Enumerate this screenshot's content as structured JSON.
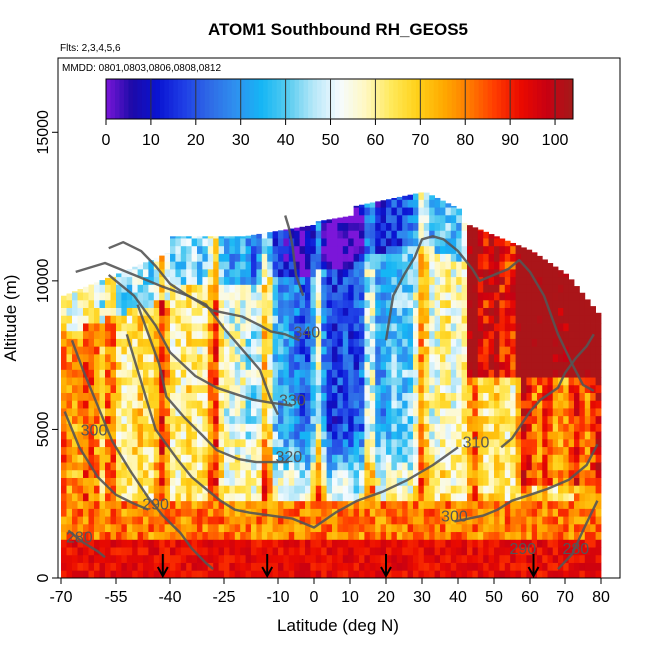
{
  "chart_data": {
    "type": "heatmap",
    "title": "ATOM1 Southbound RH_GEOS5",
    "flights_note": "Flts: 2,3,4,5,6",
    "dates_note": "MMDD: 0801,0803,0806,0808,0812",
    "xlabel": "Latitude (deg N)",
    "ylabel": "Altitude (m)",
    "xlim": [
      -70,
      80
    ],
    "ylim": [
      0,
      17500
    ],
    "x_ticks": [
      "-70",
      "-55",
      "-40",
      "-25",
      "-10",
      "0",
      "10",
      "20",
      "30",
      "40",
      "50",
      "60",
      "70",
      "80"
    ],
    "y_ticks": [
      "0",
      "5000",
      "10000",
      "15000"
    ],
    "colorbar": {
      "ticks": [
        "0",
        "10",
        "20",
        "30",
        "40",
        "50",
        "60",
        "70",
        "80",
        "90",
        "100"
      ],
      "range": [
        0,
        104
      ],
      "colors": [
        "#7b16d9",
        "#1c0aa8",
        "#0a14d2",
        "#1f3ee6",
        "#2f6be6",
        "#2f90ef",
        "#15b6f5",
        "#56cbf0",
        "#b6e7f8",
        "#f5fbff",
        "#fff8c2",
        "#ffe95a",
        "#ffd11a",
        "#ffaa00",
        "#ff7b00",
        "#ff3b00",
        "#ea0a00",
        "#c80012",
        "#a41a1a"
      ]
    },
    "flight_markers_lat": [
      -42,
      -13,
      20,
      61
    ],
    "contour_labels": [
      {
        "text": "340",
        "lat": -2,
        "alt": 8100
      },
      {
        "text": "330",
        "lat": -6,
        "alt": 5800
      },
      {
        "text": "320",
        "lat": -7,
        "alt": 3900
      },
      {
        "text": "310",
        "lat": 45,
        "alt": 4400
      },
      {
        "text": "300",
        "lat": -61,
        "alt": 4800
      },
      {
        "text": "300",
        "lat": 39,
        "alt": 1900
      },
      {
        "text": "290",
        "lat": -44,
        "alt": 2300
      },
      {
        "text": "290",
        "lat": 58,
        "alt": 800
      },
      {
        "text": "280",
        "lat": -65,
        "alt": 1200
      },
      {
        "text": "280",
        "lat": 73,
        "alt": 800
      }
    ],
    "contour_lines": [
      {
        "level": "340",
        "lat": [
          -66,
          -58,
          -50,
          -42,
          -35,
          -28,
          -20,
          -15,
          -12,
          -8,
          -4
        ],
        "alt": [
          10300,
          10600,
          10200,
          9800,
          9500,
          9000,
          8800,
          8500,
          8300,
          8200,
          8000
        ]
      },
      {
        "level": "330",
        "lat": [
          -57,
          -50,
          -44,
          -40,
          -33,
          -27,
          -22,
          -17,
          -12,
          -6
        ],
        "alt": [
          10200,
          9500,
          8500,
          7600,
          6800,
          6400,
          6200,
          6000,
          5900,
          5800
        ]
      },
      {
        "level": "320",
        "lat": [
          -49,
          -46,
          -43,
          -41,
          -36,
          -31,
          -27,
          -21,
          -16,
          -11,
          -7
        ],
        "alt": [
          9200,
          8200,
          7200,
          6100,
          5400,
          4800,
          4300,
          4000,
          3900,
          3900,
          3900
        ]
      },
      {
        "level": "310",
        "lat": [
          -52,
          -50,
          -48,
          -46,
          -44,
          -41,
          -38,
          -34,
          -30,
          -26,
          -22,
          -18,
          -12,
          -6,
          0,
          6,
          12,
          19,
          26,
          33,
          40
        ],
        "alt": [
          8200,
          7400,
          6600,
          5800,
          5000,
          4500,
          4000,
          3400,
          3000,
          2600,
          2300,
          2200,
          2100,
          2000,
          1700,
          2200,
          2600,
          2900,
          3300,
          3800,
          4400
        ]
      },
      {
        "level": "310N",
        "lat": [
          52,
          55,
          60,
          63,
          68,
          70,
          73,
          76,
          78
        ],
        "alt": [
          4400,
          4700,
          5600,
          6000,
          6400,
          6900,
          7400,
          7800,
          8200
        ]
      },
      {
        "level": "300",
        "lat": [
          -67,
          -64,
          -60,
          -56,
          -51,
          -46,
          -42,
          -37,
          -34,
          -30,
          -28
        ],
        "alt": [
          8000,
          7000,
          5800,
          4600,
          3600,
          2700,
          2100,
          1500,
          1000,
          500,
          300
        ]
      },
      {
        "level": "300N",
        "lat": [
          39,
          43,
          47,
          51,
          55,
          60,
          65,
          71,
          76,
          79
        ],
        "alt": [
          1900,
          2000,
          2100,
          2300,
          2600,
          2800,
          3000,
          3300,
          3800,
          4500
        ]
      },
      {
        "level": "290",
        "lat": [
          -69,
          -65,
          -60,
          -55,
          -50,
          -46
        ],
        "alt": [
          5600,
          4400,
          3400,
          2800,
          2500,
          2300
        ]
      },
      {
        "level": "280",
        "lat": [
          -68,
          -64,
          -60,
          -58
        ],
        "alt": [
          1600,
          1200,
          900,
          700
        ]
      },
      {
        "level": "280N",
        "lat": [
          68,
          72,
          75,
          79
        ],
        "alt": [
          300,
          800,
          1600,
          2600
        ]
      },
      {
        "level": "upper-left",
        "lat": [
          -57,
          -53,
          -48,
          -44,
          -40,
          -35,
          -30,
          -25,
          -20,
          -15,
          -12,
          -10
        ],
        "alt": [
          11100,
          11300,
          11000,
          10500,
          9900,
          9500,
          9200,
          8400,
          7700,
          7000,
          6000,
          5500
        ]
      },
      {
        "level": "upper-mid",
        "lat": [
          -8,
          -7,
          -6,
          -5,
          -3
        ],
        "alt": [
          12200,
          11800,
          11200,
          10200,
          9500
        ]
      },
      {
        "level": "upper-right",
        "lat": [
          20,
          22,
          25,
          28,
          30,
          33,
          36,
          40,
          44,
          46,
          50,
          54,
          57,
          60,
          64,
          68,
          72,
          75,
          78
        ],
        "alt": [
          8000,
          9500,
          10200,
          10800,
          11400,
          11500,
          11400,
          11000,
          10400,
          10000,
          10200,
          10400,
          10700,
          10300,
          9500,
          8200,
          7200,
          6500,
          6300
        ]
      }
    ]
  }
}
